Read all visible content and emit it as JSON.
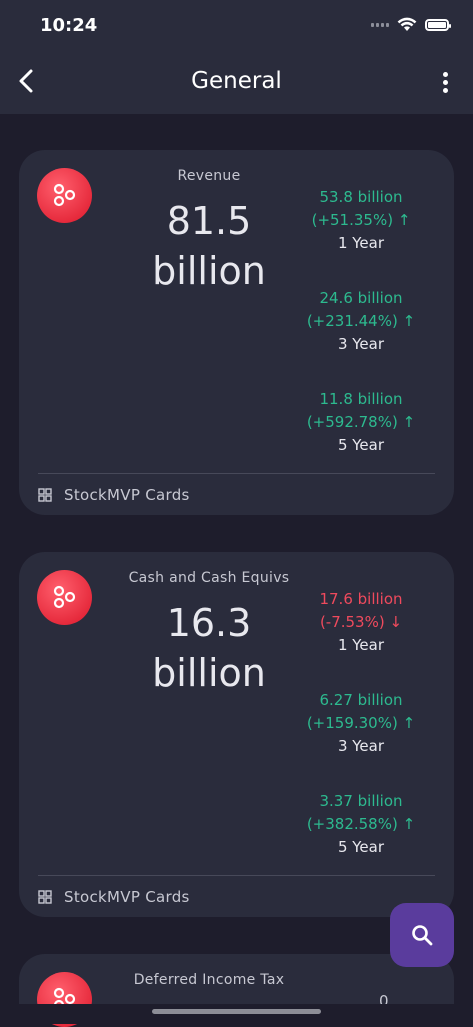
{
  "status_bar": {
    "time": "10:24"
  },
  "app_bar": {
    "title": "General"
  },
  "cards": [
    {
      "label": "Revenue",
      "value_line1": "81.5",
      "value_line2": "billion",
      "stats": [
        {
          "amount": "53.8 billion",
          "change": "(+51.35%) ↑",
          "period": "1 Year",
          "trend": "up"
        },
        {
          "amount": "24.6 billion",
          "change": "(+231.44%) ↑",
          "period": "3 Year",
          "trend": "up"
        },
        {
          "amount": "11.8 billion",
          "change": "(+592.78%) ↑",
          "period": "5 Year",
          "trend": "up"
        }
      ],
      "footer": "StockMVP Cards"
    },
    {
      "label": "Cash and Cash Equivs",
      "value_line1": "16.3",
      "value_line2": "billion",
      "stats": [
        {
          "amount": "17.6 billion",
          "change": "(-7.53%) ↓",
          "period": "1 Year",
          "trend": "down"
        },
        {
          "amount": "6.27 billion",
          "change": "(+159.30%) ↑",
          "period": "3 Year",
          "trend": "up"
        },
        {
          "amount": "3.37 billion",
          "change": "(+382.58%) ↑",
          "period": "5 Year",
          "trend": "up"
        }
      ],
      "footer": "StockMVP Cards"
    },
    {
      "label": "Deferred Income Tax",
      "partial_stat": "0"
    }
  ],
  "colors": {
    "positive": "#2dba8f",
    "negative": "#ef4a5d",
    "fab": "#5a3c9d",
    "icon": "#e5283a"
  },
  "icons": {
    "back": "chevron-left-icon",
    "more": "more-vertical-icon",
    "card": "hexagon-cluster-icon",
    "footer": "grid-icon",
    "fab": "search-icon"
  }
}
